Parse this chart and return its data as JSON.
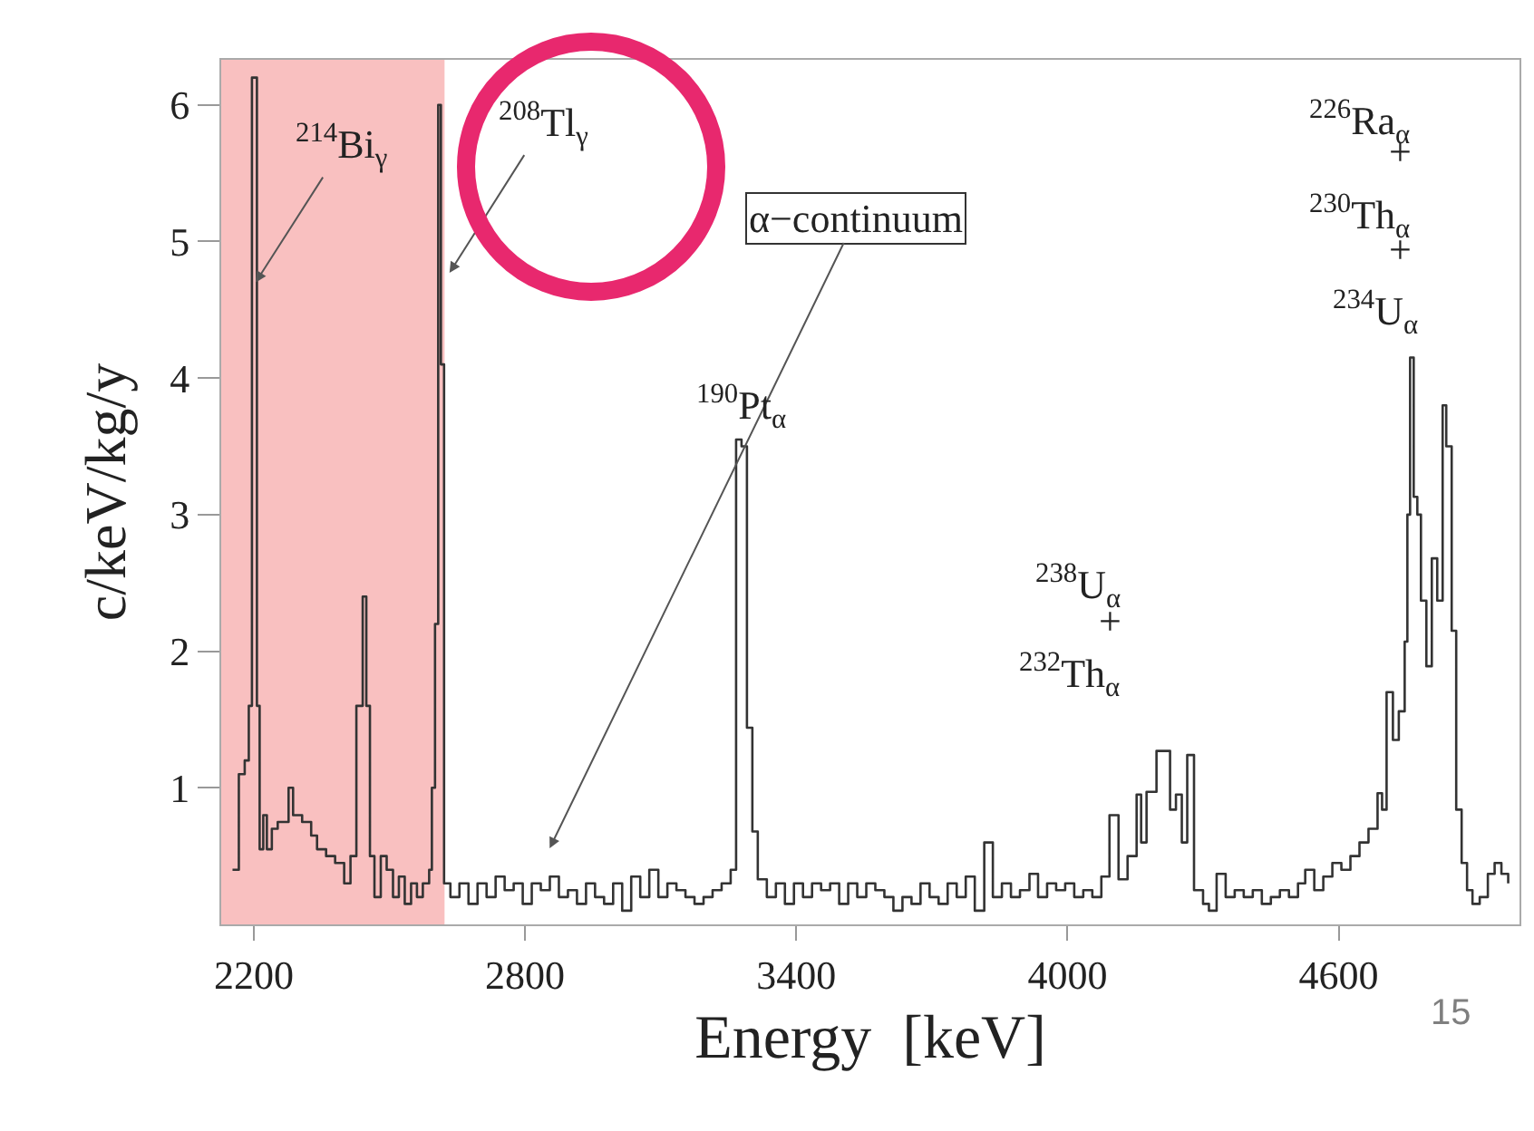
{
  "chart_data": {
    "type": "step",
    "xlabel": "Energy  [keV]",
    "ylabel": "c/keV/kg/y",
    "x": [
      2153,
      2167,
      2180,
      2189,
      2196,
      2207,
      2213,
      2221,
      2229,
      2240,
      2253,
      2277,
      2287,
      2307,
      2327,
      2340,
      2360,
      2380,
      2400,
      2414,
      2427,
      2441,
      2449,
      2457,
      2467,
      2481,
      2494,
      2508,
      2521,
      2534,
      2548,
      2561,
      2574,
      2588,
      2594,
      2601,
      2608,
      2614,
      2621,
      2635,
      2655,
      2675,
      2695,
      2715,
      2735,
      2755,
      2775,
      2795,
      2815,
      2835,
      2855,
      2875,
      2895,
      2915,
      2935,
      2955,
      2975,
      2995,
      3015,
      3035,
      3055,
      3075,
      3095,
      3115,
      3135,
      3155,
      3175,
      3195,
      3215,
      3235,
      3255,
      3267,
      3279,
      3291,
      3303,
      3315,
      3335,
      3355,
      3375,
      3395,
      3415,
      3435,
      3455,
      3475,
      3495,
      3515,
      3535,
      3555,
      3575,
      3595,
      3615,
      3635,
      3655,
      3675,
      3695,
      3715,
      3735,
      3755,
      3775,
      3795,
      3816,
      3835,
      3855,
      3875,
      3895,
      3916,
      3935,
      3955,
      3975,
      3995,
      4015,
      4035,
      4055,
      4075,
      4093,
      4113,
      4133,
      4153,
      4163,
      4175,
      4197,
      4213,
      4227,
      4240,
      4253,
      4265,
      4280,
      4300,
      4313,
      4330,
      4350,
      4370,
      4390,
      4410,
      4430,
      4450,
      4470,
      4490,
      4510,
      4526,
      4546,
      4566,
      4586,
      4606,
      4626,
      4646,
      4666,
      4686,
      4696,
      4706,
      4720,
      4733,
      4746,
      4752,
      4758,
      4766,
      4774,
      4782,
      4794,
      4806,
      4818,
      4830,
      4838,
      4850,
      4860,
      4872,
      4884,
      4896,
      4912,
      4930,
      4945,
      4960,
      4975
    ],
    "series": [
      {
        "color": "#333333",
        "values": [
          0.4,
          1.1,
          1.2,
          1.6,
          6.2,
          1.6,
          0.55,
          0.8,
          0.55,
          0.7,
          0.75,
          1.0,
          0.8,
          0.75,
          0.65,
          0.55,
          0.5,
          0.45,
          0.3,
          0.5,
          1.6,
          2.4,
          1.6,
          0.5,
          0.2,
          0.5,
          0.4,
          0.2,
          0.35,
          0.15,
          0.3,
          0.2,
          0.3,
          0.4,
          1.0,
          2.2,
          6.0,
          4.1,
          0.3,
          0.2,
          0.3,
          0.15,
          0.3,
          0.2,
          0.35,
          0.25,
          0.3,
          0.15,
          0.3,
          0.25,
          0.35,
          0.2,
          0.25,
          0.15,
          0.3,
          0.2,
          0.15,
          0.3,
          0.1,
          0.35,
          0.2,
          0.4,
          0.2,
          0.3,
          0.25,
          0.2,
          0.15,
          0.2,
          0.25,
          0.3,
          0.4,
          3.55,
          3.5,
          1.44,
          0.68,
          0.33,
          0.2,
          0.3,
          0.15,
          0.3,
          0.2,
          0.3,
          0.25,
          0.3,
          0.15,
          0.3,
          0.2,
          0.3,
          0.25,
          0.2,
          0.1,
          0.2,
          0.15,
          0.3,
          0.2,
          0.15,
          0.3,
          0.2,
          0.35,
          0.1,
          0.6,
          0.2,
          0.3,
          0.2,
          0.25,
          0.37,
          0.2,
          0.3,
          0.25,
          0.3,
          0.2,
          0.25,
          0.2,
          0.35,
          0.8,
          0.33,
          0.5,
          0.95,
          0.6,
          0.97,
          1.27,
          1.27,
          0.84,
          0.95,
          0.6,
          1.24,
          0.25,
          0.15,
          0.1,
          0.37,
          0.2,
          0.25,
          0.2,
          0.25,
          0.15,
          0.2,
          0.25,
          0.2,
          0.3,
          0.4,
          0.25,
          0.35,
          0.45,
          0.4,
          0.5,
          0.6,
          0.7,
          0.96,
          0.84,
          1.7,
          1.35,
          1.56,
          2.07,
          3.0,
          4.15,
          3.13,
          3.0,
          2.37,
          1.89,
          2.68,
          2.37,
          3.8,
          3.5,
          2.15,
          0.84,
          0.45,
          0.25,
          0.15,
          0.2,
          0.37,
          0.45,
          0.37,
          0.3
        ]
      }
    ],
    "xlim": [
      2128,
      5000
    ],
    "ylim": [
      0,
      6.33
    ],
    "xticks": [
      2200,
      2800,
      3400,
      4000,
      4600
    ],
    "yticks": [
      1,
      2,
      3,
      4,
      5,
      6
    ],
    "grid": false,
    "marker": "none",
    "line_style": "solid",
    "bands": [
      {
        "axis": "x",
        "from": 2128,
        "to": 2622,
        "color": "#f59696"
      }
    ],
    "annotations": [
      {
        "text": "$^{214}$Bi$_{γ}$",
        "x": 2204,
        "y": 4.7
      },
      {
        "text": "$^{208}$Tl$_{γ}$",
        "x": 2633,
        "y": 4.77
      },
      "α−continuum",
      {
        "text": "$^{190}$Pt$_{α}$",
        "x": 3279,
        "y": 3.55
      },
      "$^{238}$U$_{α}$",
      "+",
      "$^{232}$Th$_{α}$",
      "$^{226}$Ra$_{α}$",
      "+",
      "$^{230}$Th$_{α}$",
      "+",
      "$^{234}$U$_{α}$",
      "15"
    ]
  }
}
